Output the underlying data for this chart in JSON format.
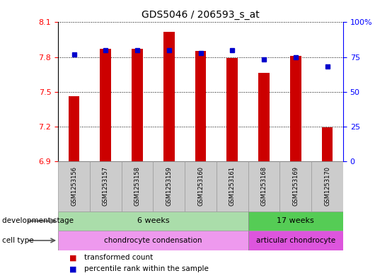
{
  "title": "GDS5046 / 206593_s_at",
  "samples": [
    "GSM1253156",
    "GSM1253157",
    "GSM1253158",
    "GSM1253159",
    "GSM1253160",
    "GSM1253161",
    "GSM1253168",
    "GSM1253169",
    "GSM1253170"
  ],
  "transformed_count": [
    7.46,
    7.87,
    7.87,
    8.02,
    7.85,
    7.79,
    7.66,
    7.81,
    7.19
  ],
  "percentile_rank": [
    77,
    80,
    80,
    80,
    78,
    80,
    73,
    75,
    68
  ],
  "ylim": [
    6.9,
    8.1
  ],
  "yticks_left": [
    6.9,
    7.2,
    7.5,
    7.8,
    8.1
  ],
  "right_yticks": [
    0,
    25,
    50,
    75,
    100
  ],
  "bar_color": "#cc0000",
  "dot_color": "#0000cc",
  "group1_label_color": "#aaddaa",
  "group2_label_color": "#55cc55",
  "cell1_color": "#ee99ee",
  "cell2_color": "#dd55dd",
  "xtick_bg": "#cccccc",
  "development_groups": [
    {
      "label": "6 weeks",
      "start": 0,
      "end": 5,
      "color": "#aaddaa"
    },
    {
      "label": "17 weeks",
      "start": 6,
      "end": 8,
      "color": "#55cc55"
    }
  ],
  "cell_groups": [
    {
      "label": "chondrocyte condensation",
      "start": 0,
      "end": 5,
      "color": "#ee99ee"
    },
    {
      "label": "articular chondrocyte",
      "start": 6,
      "end": 8,
      "color": "#dd55dd"
    }
  ],
  "legend_items": [
    {
      "color": "#cc0000",
      "label": "transformed count"
    },
    {
      "color": "#0000cc",
      "label": "percentile rank within the sample"
    }
  ],
  "base_value": 6.9
}
